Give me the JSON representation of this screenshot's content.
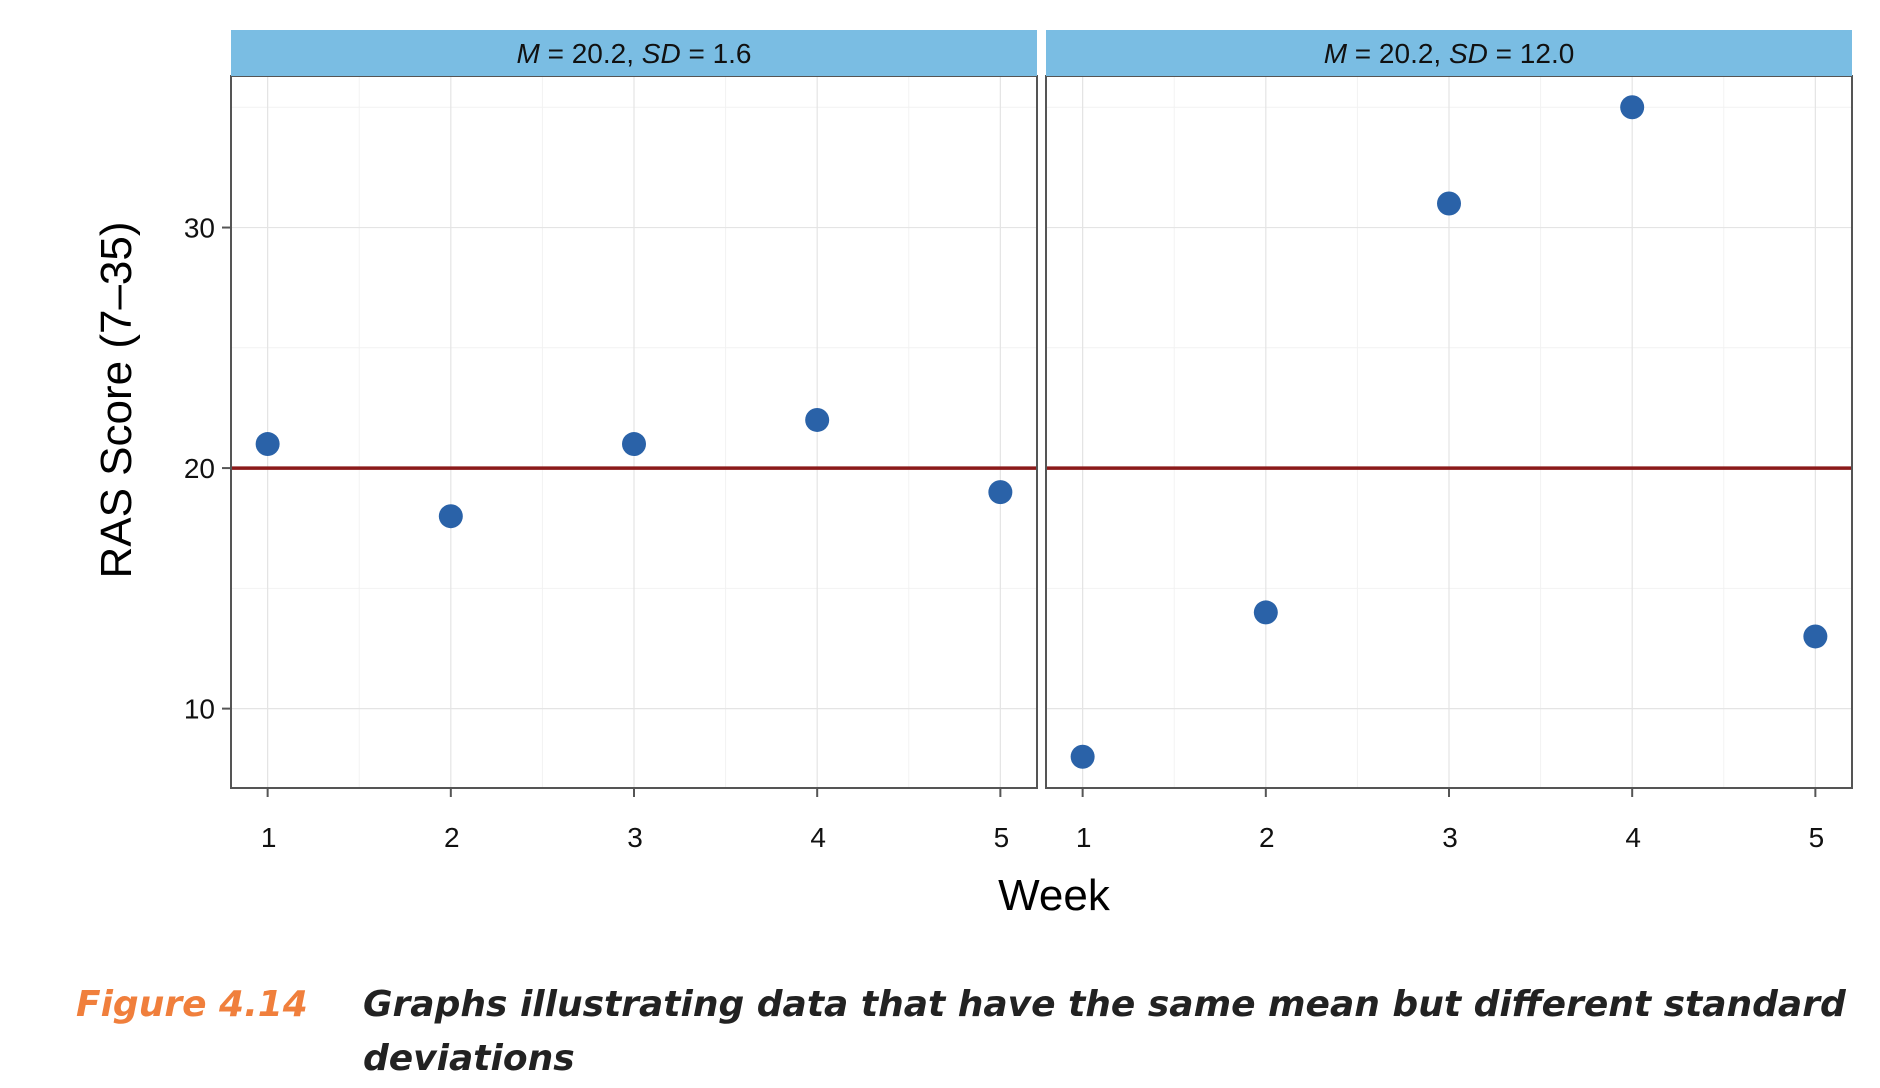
{
  "chart_data": {
    "type": "scatter",
    "xlabel": "Week",
    "ylabel": "RAS Score (7–35)",
    "xlim": [
      0.8,
      5.2
    ],
    "ylim": [
      6.7,
      36.3
    ],
    "xticks": [
      1,
      2,
      3,
      4,
      5
    ],
    "yticks": [
      10,
      20,
      30
    ],
    "grid": true,
    "reference_line": {
      "y": 20,
      "color": "#8b1a1a"
    },
    "point_color": "#2a62a8",
    "strip_color": "#7abde3",
    "panels": [
      {
        "strip": {
          "m_label": "M",
          "m_value": " = 20.2, ",
          "sd_label": "SD",
          "sd_value": " = 1.6"
        },
        "x": [
          1,
          2,
          3,
          4,
          5
        ],
        "y": [
          21,
          18,
          21,
          22,
          19
        ]
      },
      {
        "strip": {
          "m_label": "M",
          "m_value": " = 20.2, ",
          "sd_label": "SD",
          "sd_value": " = 12.0"
        },
        "x": [
          1,
          2,
          3,
          4,
          5
        ],
        "y": [
          8,
          14,
          31,
          35,
          13
        ]
      }
    ]
  },
  "caption": {
    "label": "Figure 4.14",
    "text": "Graphs illustrating data that have the same mean but different standard deviations"
  }
}
